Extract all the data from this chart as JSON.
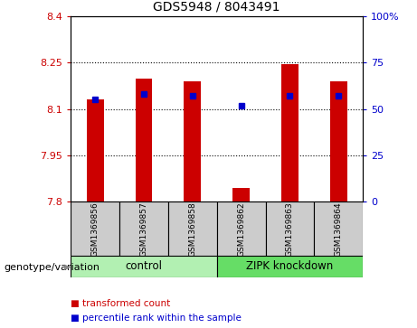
{
  "title": "GDS5948 / 8043491",
  "samples": [
    "GSM1369856",
    "GSM1369857",
    "GSM1369858",
    "GSM1369862",
    "GSM1369863",
    "GSM1369864"
  ],
  "bar_values": [
    8.13,
    8.2,
    8.19,
    7.845,
    8.245,
    8.19
  ],
  "percentile_values": [
    55,
    58,
    57,
    52,
    57,
    57
  ],
  "ymin": 7.8,
  "ymax": 8.4,
  "yticks_left": [
    7.8,
    7.95,
    8.1,
    8.25,
    8.4
  ],
  "yticks_right": [
    0,
    25,
    50,
    75,
    100
  ],
  "bar_color": "#cc0000",
  "dot_color": "#0000cc",
  "group1_label": "control",
  "group2_label": "ZIPK knockdown",
  "group_color_1": "#b2f0b2",
  "group_color_2": "#66dd66",
  "sample_box_color": "#cccccc",
  "legend_items": [
    "transformed count",
    "percentile rank within the sample"
  ],
  "legend_colors": [
    "#cc0000",
    "#0000cc"
  ],
  "genotype_label": "genotype/variation",
  "bar_width": 0.35
}
